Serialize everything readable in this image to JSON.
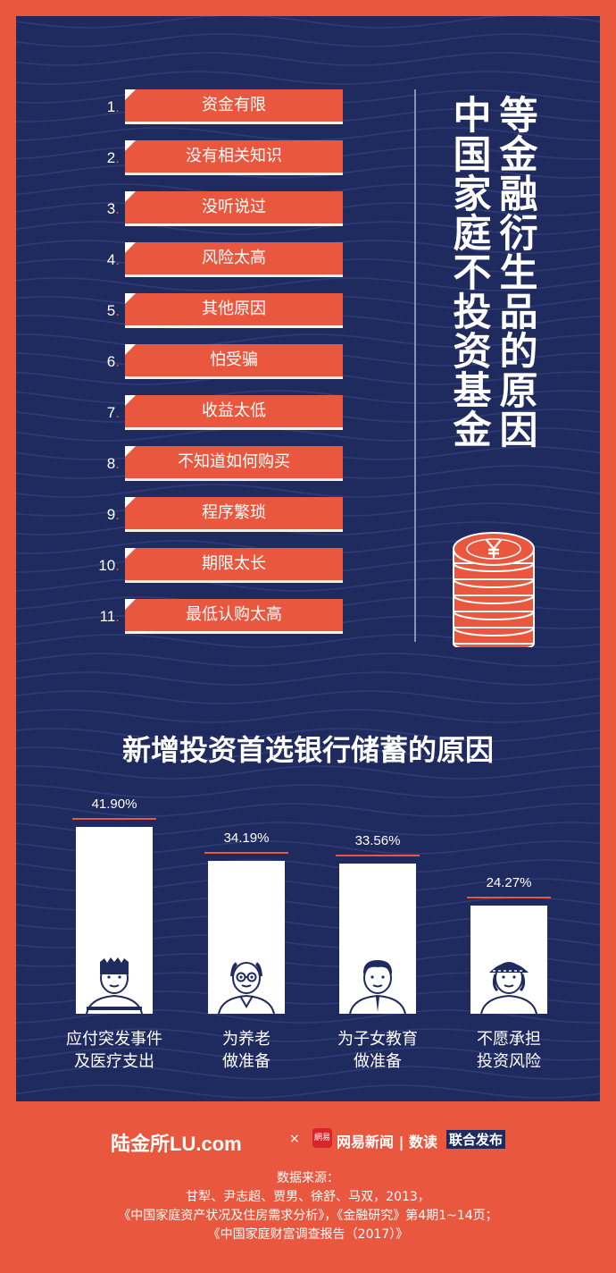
{
  "colors": {
    "background": "#e9573f",
    "panel": "#1f2a5e",
    "accent": "#e9573f",
    "text": "#ffffff"
  },
  "ranking": {
    "title": "中国家庭不投资基金等金融衍生品的原因",
    "title_col_1": "中国家庭不投资基金",
    "title_col_2": "等金融衍生品的原因",
    "items": [
      {
        "num": "1",
        "label": "资金有限"
      },
      {
        "num": "2",
        "label": "没有相关知识"
      },
      {
        "num": "3",
        "label": "没听说过"
      },
      {
        "num": "4",
        "label": "风险太高"
      },
      {
        "num": "5",
        "label": "其他原因"
      },
      {
        "num": "6",
        "label": "怕受骗"
      },
      {
        "num": "7",
        "label": "收益太低"
      },
      {
        "num": "8",
        "label": "不知道如何购买"
      },
      {
        "num": "9",
        "label": "程序繁琐"
      },
      {
        "num": "10",
        "label": "期限太长"
      },
      {
        "num": "11",
        "label": "最低认购太高"
      }
    ],
    "icon": "yuan-coin-stack-icon"
  },
  "bank_savings": {
    "title": "新增投资首选银行储蓄的原因",
    "bars": [
      {
        "value": 41.9,
        "label_value": "41.90%",
        "label_line1": "应付突发事件",
        "label_line2": "及医疗支出",
        "figure": "young-man-icon"
      },
      {
        "value": 34.19,
        "label_value": "34.19%",
        "label_line1": "为养老",
        "label_line2": "做准备",
        "figure": "elderly-man-icon"
      },
      {
        "value": 33.56,
        "label_value": "33.56%",
        "label_line1": "为子女教育",
        "label_line2": "做准备",
        "figure": "parent-man-icon"
      },
      {
        "value": 24.27,
        "label_value": "24.27%",
        "label_line1": "不愿承担",
        "label_line2": "投资风险",
        "figure": "woman-hat-icon"
      }
    ]
  },
  "footer": {
    "lu_logo": "陆金所LU.com",
    "times": "×",
    "netease_icon_text": "網易",
    "netease_text": "网易新闻 | 数读",
    "joint_release": "联合发布",
    "source_title": "数据来源：",
    "source_line1": "甘犁、尹志超、贾男、徐舒、马双，2013，",
    "source_line2": "《中国家庭资产状况及住房需求分析》，《金融研究》第4期1~14页；",
    "source_line3": "《中国家庭财富调查报告（2017）》"
  }
}
